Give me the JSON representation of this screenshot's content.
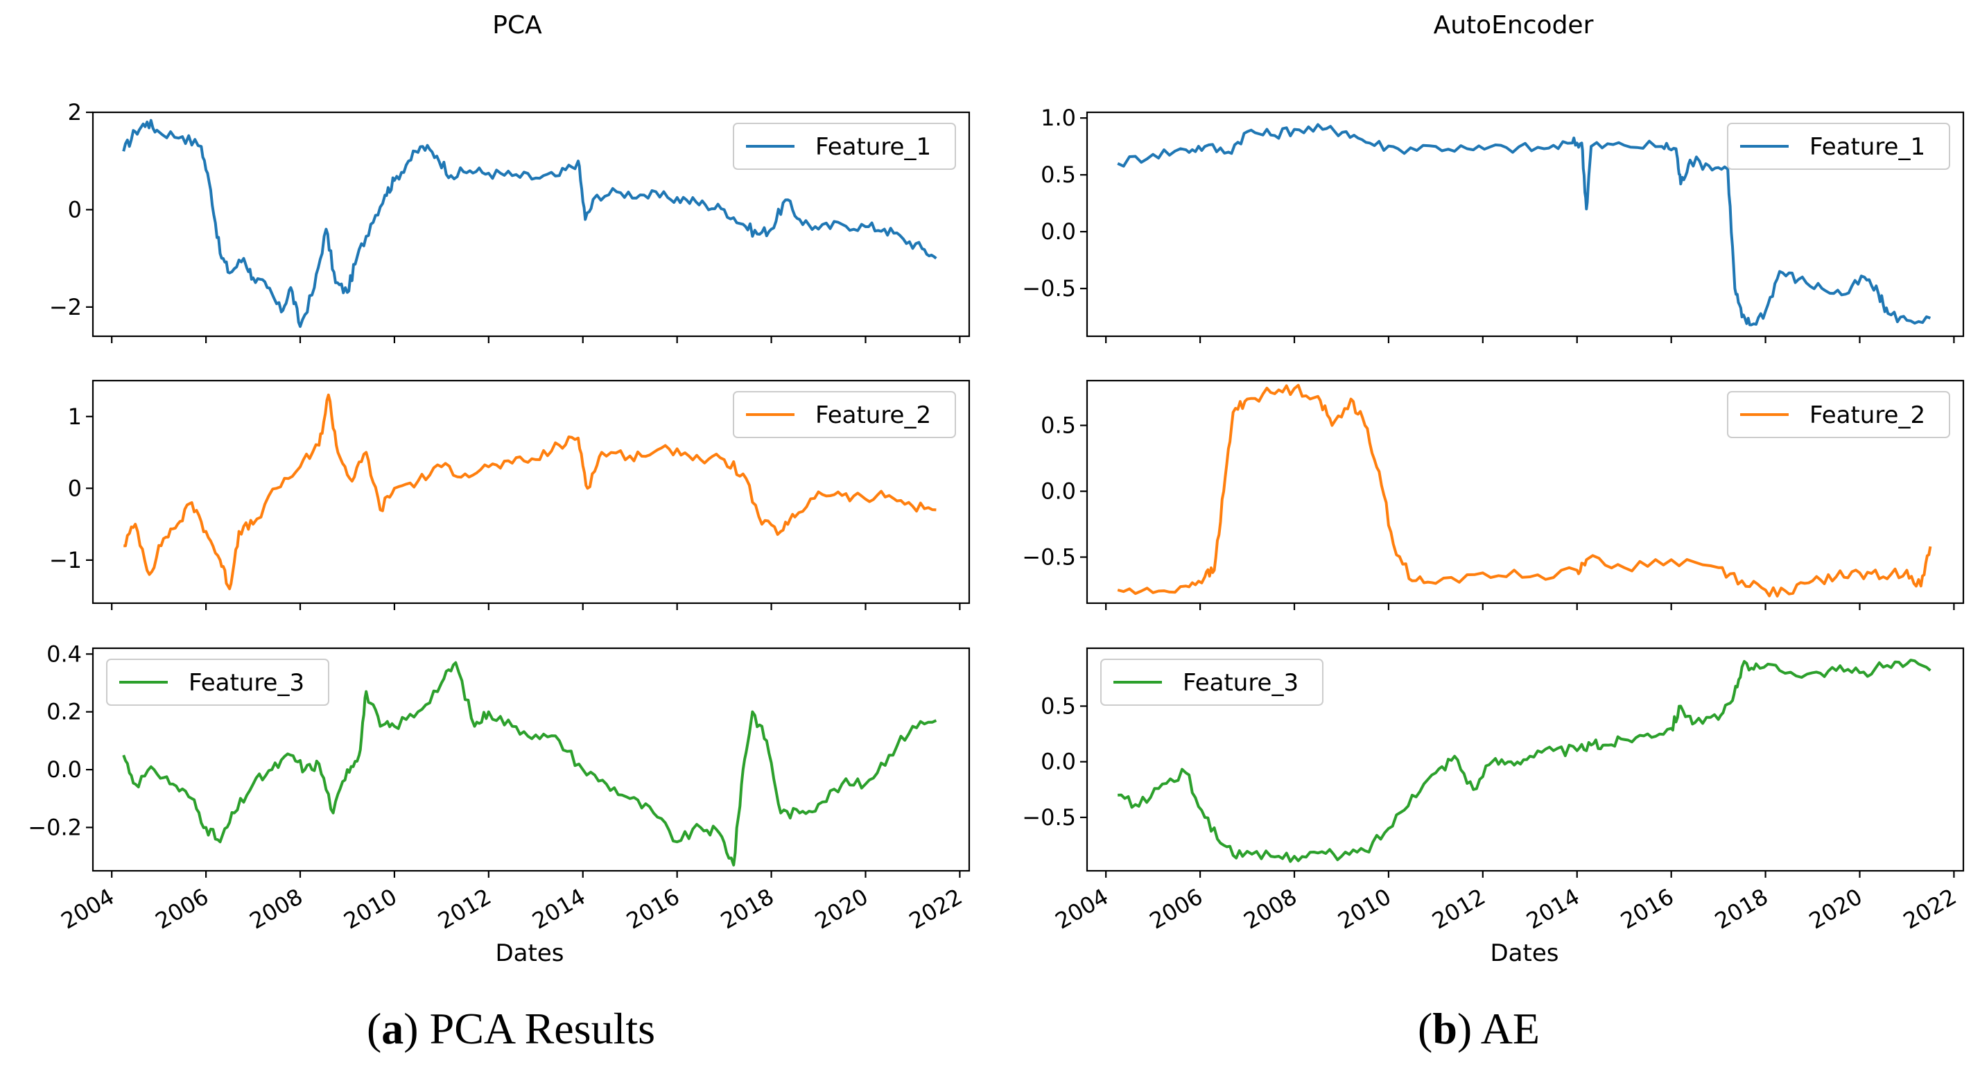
{
  "captions": [
    {
      "letter": "a",
      "text": "PCA Results"
    },
    {
      "letter": "b",
      "text": "AE"
    }
  ],
  "chart_data": [
    {
      "type": "line",
      "title": "PCA",
      "xlabel": "Dates",
      "x_ticks": [
        "2004",
        "2006",
        "2008",
        "2010",
        "2012",
        "2014",
        "2016",
        "2018",
        "2020",
        "2022"
      ],
      "x_range": [
        2003.6,
        2022.2
      ],
      "panels": [
        {
          "name": "Feature_1",
          "color": "#1f77b4",
          "legend": "top-right",
          "ylim": [
            -2.6,
            2.0
          ],
          "y_ticks": [
            {
              "v": 2,
              "label": "2"
            },
            {
              "v": 0,
              "label": "0"
            },
            {
              "v": -2,
              "label": "−2"
            }
          ],
          "x": [
            2004.25,
            2004.5,
            2004.75,
            2005.0,
            2005.5,
            2005.9,
            2006.1,
            2006.3,
            2006.5,
            2006.8,
            2007.0,
            2007.3,
            2007.6,
            2007.8,
            2008.0,
            2008.3,
            2008.55,
            2008.75,
            2009.0,
            2009.2,
            2009.5,
            2009.8,
            2010.0,
            2010.3,
            2010.6,
            2010.9,
            2011.2,
            2011.6,
            2012.0,
            2012.5,
            2013.0,
            2013.5,
            2013.9,
            2014.05,
            2014.3,
            2014.8,
            2015.3,
            2015.8,
            2016.2,
            2016.6,
            2017.0,
            2017.4,
            2017.7,
            2018.0,
            2018.3,
            2018.6,
            2019.0,
            2019.5,
            2020.0,
            2020.4,
            2020.8,
            2021.2,
            2021.5
          ],
          "values": [
            1.2,
            1.6,
            1.8,
            1.6,
            1.5,
            1.3,
            0.4,
            -0.9,
            -1.3,
            -1.0,
            -1.4,
            -1.6,
            -2.1,
            -1.6,
            -2.4,
            -1.6,
            -0.4,
            -1.5,
            -1.7,
            -1.0,
            -0.3,
            0.3,
            0.6,
            1.0,
            1.3,
            1.1,
            0.7,
            0.8,
            0.75,
            0.7,
            0.65,
            0.7,
            1.0,
            -0.2,
            0.3,
            0.35,
            0.3,
            0.25,
            0.2,
            0.1,
            0.0,
            -0.3,
            -0.5,
            -0.4,
            0.2,
            -0.2,
            -0.4,
            -0.3,
            -0.35,
            -0.4,
            -0.6,
            -0.8,
            -1.0
          ]
        },
        {
          "name": "Feature_2",
          "color": "#ff7f0e",
          "legend": "top-right",
          "ylim": [
            -1.6,
            1.5
          ],
          "y_ticks": [
            {
              "v": 1,
              "label": "1"
            },
            {
              "v": 0,
              "label": "0"
            },
            {
              "v": -1,
              "label": "−1"
            }
          ],
          "x": [
            2004.25,
            2004.5,
            2004.8,
            2005.1,
            2005.4,
            2005.7,
            2006.0,
            2006.3,
            2006.5,
            2006.7,
            2007.0,
            2007.5,
            2008.0,
            2008.4,
            2008.6,
            2008.8,
            2009.1,
            2009.4,
            2009.7,
            2010.0,
            2010.5,
            2011.0,
            2011.5,
            2012.0,
            2012.5,
            2013.0,
            2013.5,
            2013.9,
            2014.1,
            2014.4,
            2015.0,
            2015.5,
            2016.0,
            2016.5,
            2017.0,
            2017.4,
            2017.8,
            2018.2,
            2018.5,
            2019.0,
            2019.5,
            2020.0,
            2020.5,
            2021.0,
            2021.5
          ],
          "values": [
            -0.8,
            -0.5,
            -1.2,
            -0.7,
            -0.5,
            -0.2,
            -0.6,
            -1.0,
            -1.4,
            -0.6,
            -0.5,
            0.0,
            0.3,
            0.6,
            1.3,
            0.5,
            0.1,
            0.5,
            -0.3,
            0.0,
            0.1,
            0.3,
            0.2,
            0.3,
            0.35,
            0.4,
            0.6,
            0.7,
            0.0,
            0.5,
            0.45,
            0.5,
            0.55,
            0.4,
            0.4,
            0.2,
            -0.5,
            -0.6,
            -0.4,
            -0.05,
            -0.1,
            -0.15,
            -0.1,
            -0.25,
            -0.3
          ]
        },
        {
          "name": "Feature_3",
          "color": "#2ca02c",
          "legend": "top-left",
          "ylim": [
            -0.35,
            0.42
          ],
          "y_ticks": [
            {
              "v": 0.4,
              "label": "0.4"
            },
            {
              "v": 0.2,
              "label": "0.2"
            },
            {
              "v": 0.0,
              "label": "0.0"
            },
            {
              "v": -0.2,
              "label": "−0.2"
            }
          ],
          "x": [
            2004.25,
            2004.5,
            2004.9,
            2005.3,
            2005.7,
            2006.0,
            2006.3,
            2006.6,
            2007.0,
            2007.4,
            2007.8,
            2008.1,
            2008.4,
            2008.7,
            2009.0,
            2009.25,
            2009.4,
            2009.7,
            2010.0,
            2010.5,
            2011.0,
            2011.3,
            2011.7,
            2012.0,
            2012.5,
            2013.0,
            2013.5,
            2014.0,
            2014.5,
            2015.0,
            2015.5,
            2016.0,
            2016.5,
            2016.9,
            2017.2,
            2017.4,
            2017.6,
            2017.9,
            2018.2,
            2018.6,
            2019.0,
            2019.5,
            2020.0,
            2020.5,
            2021.0,
            2021.5
          ],
          "values": [
            0.05,
            -0.05,
            0.0,
            -0.05,
            -0.1,
            -0.2,
            -0.25,
            -0.15,
            -0.05,
            0.0,
            0.05,
            0.0,
            0.02,
            -0.15,
            0.0,
            0.05,
            0.27,
            0.15,
            0.15,
            0.2,
            0.3,
            0.37,
            0.15,
            0.2,
            0.15,
            0.12,
            0.1,
            0.0,
            -0.05,
            -0.1,
            -0.15,
            -0.25,
            -0.2,
            -0.22,
            -0.33,
            0.0,
            0.2,
            0.1,
            -0.15,
            -0.15,
            -0.12,
            -0.05,
            -0.05,
            0.05,
            0.15,
            0.17
          ]
        }
      ]
    },
    {
      "type": "line",
      "title": "AutoEncoder",
      "xlabel": "Dates",
      "x_ticks": [
        "2004",
        "2006",
        "2008",
        "2010",
        "2012",
        "2014",
        "2016",
        "2018",
        "2020",
        "2022"
      ],
      "x_range": [
        2003.6,
        2022.2
      ],
      "panels": [
        {
          "name": "Feature_1",
          "color": "#1f77b4",
          "legend": "top-right",
          "ylim": [
            -0.92,
            1.05
          ],
          "y_ticks": [
            {
              "v": 1.0,
              "label": "1.0"
            },
            {
              "v": 0.5,
              "label": "0.5"
            },
            {
              "v": 0.0,
              "label": "0.0"
            },
            {
              "v": -0.5,
              "label": "−0.5"
            }
          ],
          "x": [
            2004.25,
            2005.0,
            2005.7,
            2006.1,
            2006.6,
            2007.0,
            2007.5,
            2008.0,
            2008.6,
            2009.1,
            2009.6,
            2010.2,
            2011.0,
            2011.8,
            2012.5,
            2013.3,
            2013.9,
            2014.1,
            2014.2,
            2014.3,
            2015.0,
            2015.8,
            2016.1,
            2016.2,
            2016.4,
            2016.8,
            2017.2,
            2017.35,
            2017.5,
            2017.7,
            2018.0,
            2018.3,
            2018.7,
            2019.2,
            2019.7,
            2020.1,
            2020.4,
            2020.6,
            2021.0,
            2021.5
          ],
          "values": [
            0.6,
            0.68,
            0.72,
            0.75,
            0.7,
            0.88,
            0.85,
            0.9,
            0.9,
            0.88,
            0.78,
            0.73,
            0.75,
            0.72,
            0.74,
            0.73,
            0.78,
            0.78,
            0.2,
            0.75,
            0.76,
            0.75,
            0.73,
            0.42,
            0.63,
            0.58,
            0.55,
            -0.5,
            -0.75,
            -0.82,
            -0.7,
            -0.35,
            -0.42,
            -0.5,
            -0.55,
            -0.4,
            -0.55,
            -0.72,
            -0.78,
            -0.76
          ]
        },
        {
          "name": "Feature_2",
          "color": "#ff7f0e",
          "legend": "top-right",
          "ylim": [
            -0.85,
            0.84
          ],
          "y_ticks": [
            {
              "v": 0.5,
              "label": "0.5"
            },
            {
              "v": 0.0,
              "label": "0.0"
            },
            {
              "v": -0.5,
              "label": "−0.5"
            }
          ],
          "x": [
            2004.25,
            2005.0,
            2005.7,
            2006.1,
            2006.3,
            2006.5,
            2006.7,
            2007.0,
            2007.5,
            2008.0,
            2008.5,
            2008.8,
            2009.2,
            2009.5,
            2009.8,
            2010.1,
            2010.5,
            2011.0,
            2012.0,
            2013.0,
            2014.0,
            2014.2,
            2015.0,
            2016.0,
            2017.0,
            2017.5,
            2018.0,
            2018.5,
            2019.0,
            2019.5,
            2020.0,
            2020.5,
            2021.0,
            2021.3,
            2021.5
          ],
          "values": [
            -0.75,
            -0.77,
            -0.72,
            -0.65,
            -0.6,
            0.0,
            0.6,
            0.7,
            0.75,
            0.78,
            0.72,
            0.5,
            0.7,
            0.5,
            0.15,
            -0.4,
            -0.68,
            -0.7,
            -0.62,
            -0.65,
            -0.6,
            -0.52,
            -0.58,
            -0.52,
            -0.58,
            -0.68,
            -0.75,
            -0.78,
            -0.68,
            -0.65,
            -0.62,
            -0.65,
            -0.6,
            -0.72,
            -0.42
          ]
        },
        {
          "name": "Feature_3",
          "color": "#2ca02c",
          "legend": "top-left",
          "ylim": [
            -0.98,
            1.02
          ],
          "y_ticks": [
            {
              "v": 0.5,
              "label": "0.5"
            },
            {
              "v": 0.0,
              "label": "0.0"
            },
            {
              "v": -0.5,
              "label": "−0.5"
            }
          ],
          "x": [
            2004.25,
            2004.7,
            2005.2,
            2005.7,
            2006.1,
            2006.5,
            2006.9,
            2007.5,
            2008.0,
            2008.5,
            2009.0,
            2009.5,
            2010.0,
            2010.5,
            2011.0,
            2011.4,
            2011.8,
            2012.2,
            2012.6,
            2013.0,
            2013.5,
            2014.0,
            2014.3,
            2014.6,
            2015.0,
            2015.5,
            2016.0,
            2016.2,
            2016.5,
            2017.0,
            2017.3,
            2017.5,
            2017.8,
            2018.3,
            2019.0,
            2019.5,
            2020.0,
            2020.5,
            2021.0,
            2021.5
          ],
          "values": [
            -0.3,
            -0.4,
            -0.2,
            -0.1,
            -0.5,
            -0.75,
            -0.85,
            -0.85,
            -0.85,
            -0.82,
            -0.85,
            -0.8,
            -0.6,
            -0.3,
            -0.1,
            0.05,
            -0.25,
            0.0,
            0.0,
            0.05,
            0.1,
            0.1,
            0.15,
            0.15,
            0.2,
            0.25,
            0.3,
            0.5,
            0.35,
            0.38,
            0.55,
            0.85,
            0.88,
            0.82,
            0.8,
            0.82,
            0.8,
            0.85,
            0.88,
            0.82
          ]
        }
      ]
    }
  ]
}
